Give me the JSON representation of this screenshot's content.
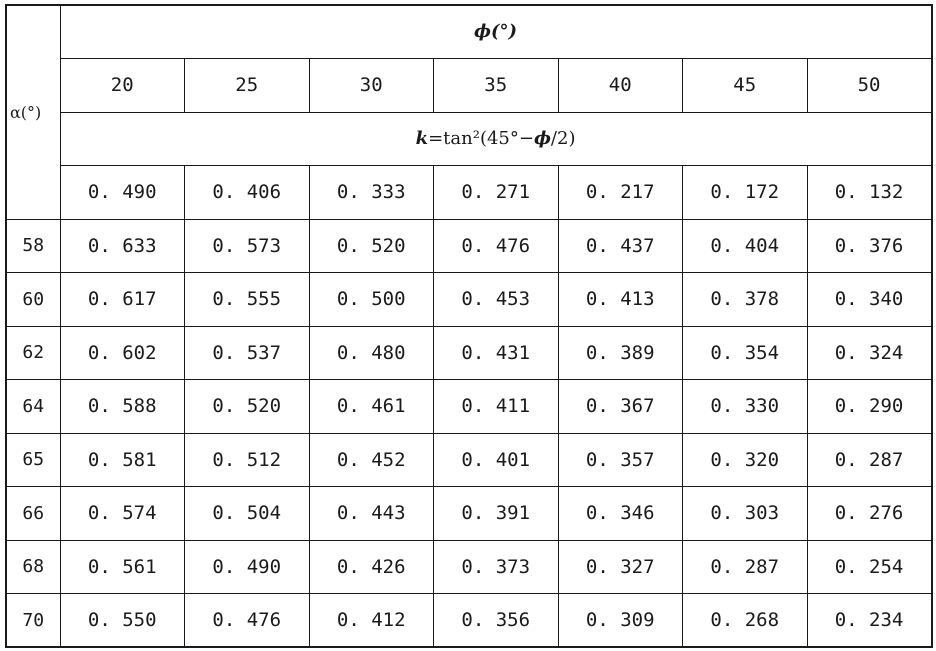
{
  "table": {
    "alpha_header": "α(°)",
    "phi_header": "ϕ(°)",
    "phi_values": [
      "20",
      "25",
      "30",
      "35",
      "40",
      "45",
      "50"
    ],
    "formula": "k=tan²(45°−ϕ/2)",
    "k_values": [
      "0. 490",
      "0. 406",
      "0. 333",
      "0. 271",
      "0. 217",
      "0. 172",
      "0. 132"
    ],
    "rows": [
      {
        "alpha": "58",
        "values": [
          "0. 633",
          "0. 573",
          "0. 520",
          "0. 476",
          "0. 437",
          "0. 404",
          "0. 376"
        ]
      },
      {
        "alpha": "60",
        "values": [
          "0. 617",
          "0. 555",
          "0. 500",
          "0. 453",
          "0. 413",
          "0. 378",
          "0. 340"
        ]
      },
      {
        "alpha": "62",
        "values": [
          "0. 602",
          "0. 537",
          "0. 480",
          "0. 431",
          "0. 389",
          "0. 354",
          "0. 324"
        ]
      },
      {
        "alpha": "64",
        "values": [
          "0. 588",
          "0. 520",
          "0. 461",
          "0. 411",
          "0. 367",
          "0. 330",
          "0. 290"
        ]
      },
      {
        "alpha": "65",
        "values": [
          "0. 581",
          "0. 512",
          "0. 452",
          "0. 401",
          "0. 357",
          "0. 320",
          "0. 287"
        ]
      },
      {
        "alpha": "66",
        "values": [
          "0. 574",
          "0. 504",
          "0. 443",
          "0. 391",
          "0. 346",
          "0. 303",
          "0. 276"
        ]
      },
      {
        "alpha": "68",
        "values": [
          "0. 561",
          "0. 490",
          "0. 426",
          "0. 373",
          "0. 327",
          "0. 287",
          "0. 254"
        ]
      },
      {
        "alpha": "70",
        "values": [
          "0. 550",
          "0. 476",
          "0. 412",
          "0. 356",
          "0. 309",
          "0. 268",
          "0. 234"
        ]
      }
    ]
  }
}
